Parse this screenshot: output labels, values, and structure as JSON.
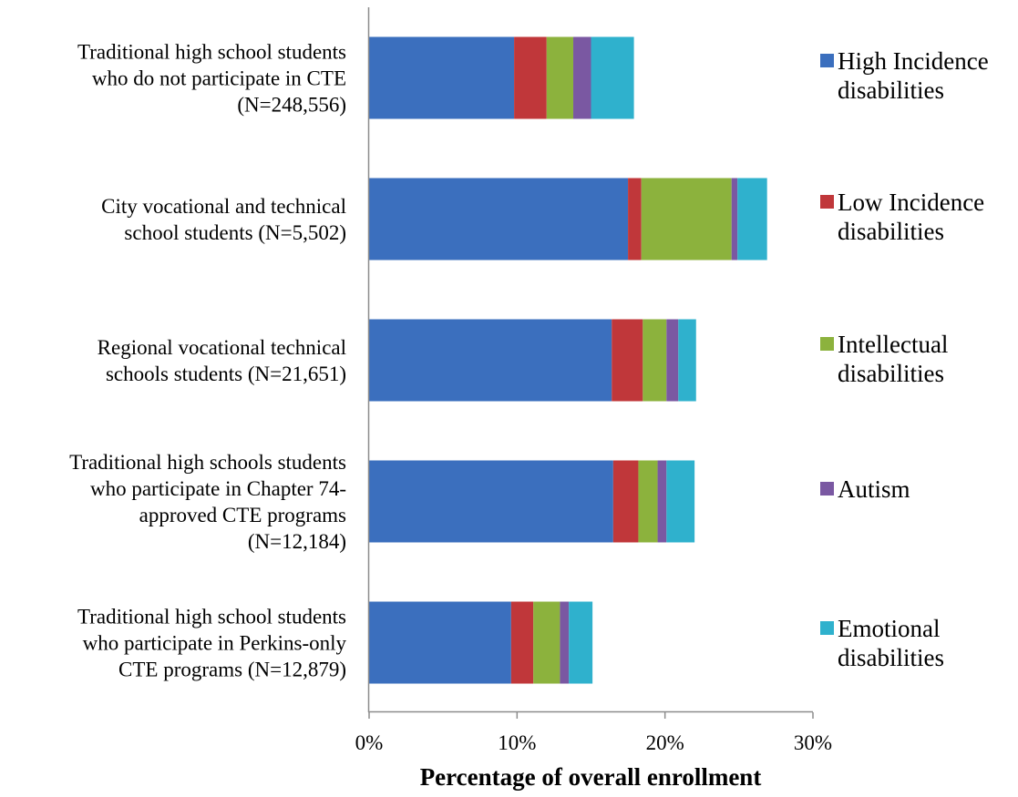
{
  "chart_data": {
    "type": "bar",
    "orientation": "horizontal",
    "stacked": true,
    "categories": [
      [
        "Traditional high school students",
        "who do not participate in  CTE",
        "(N=248,556)"
      ],
      [
        "City vocational and technical",
        "school students  (N=5,502)"
      ],
      [
        "Regional vocational technical",
        "schools students (N=21,651)"
      ],
      [
        "Traditional high schools students",
        "who participate in Chapter 74-",
        "approved CTE programs",
        "(N=12,184)"
      ],
      [
        "Traditional high school students",
        "who participate in Perkins-only",
        "CTE programs (N=12,879)"
      ]
    ],
    "series": [
      {
        "name": [
          "High Incidence",
          "disabilities"
        ],
        "color": "#3b6fbe",
        "values": [
          9.8,
          17.5,
          16.4,
          16.5,
          9.6
        ]
      },
      {
        "name": [
          "Low Incidence",
          "disabilities"
        ],
        "color": "#c0373a",
        "values": [
          2.2,
          0.9,
          2.1,
          1.7,
          1.5
        ]
      },
      {
        "name": [
          "Intellectual",
          "disabilities"
        ],
        "color": "#8cb23d",
        "values": [
          1.8,
          6.1,
          1.6,
          1.3,
          1.8
        ]
      },
      {
        "name": [
          "Autism"
        ],
        "color": "#7a58a2",
        "values": [
          1.2,
          0.4,
          0.8,
          0.6,
          0.6
        ]
      },
      {
        "name": [
          "Emotional",
          "disabilities"
        ],
        "color": "#2fb1cd",
        "values": [
          2.9,
          2.0,
          1.2,
          1.9,
          1.6
        ]
      }
    ],
    "x_ticks": [
      "0%",
      "10%",
      "20%",
      "30%"
    ],
    "xlim": [
      0,
      30
    ],
    "xlabel": "Percentage of overall enrollment",
    "ylabel": "",
    "title": "",
    "grid": false,
    "legend_position": "right"
  }
}
